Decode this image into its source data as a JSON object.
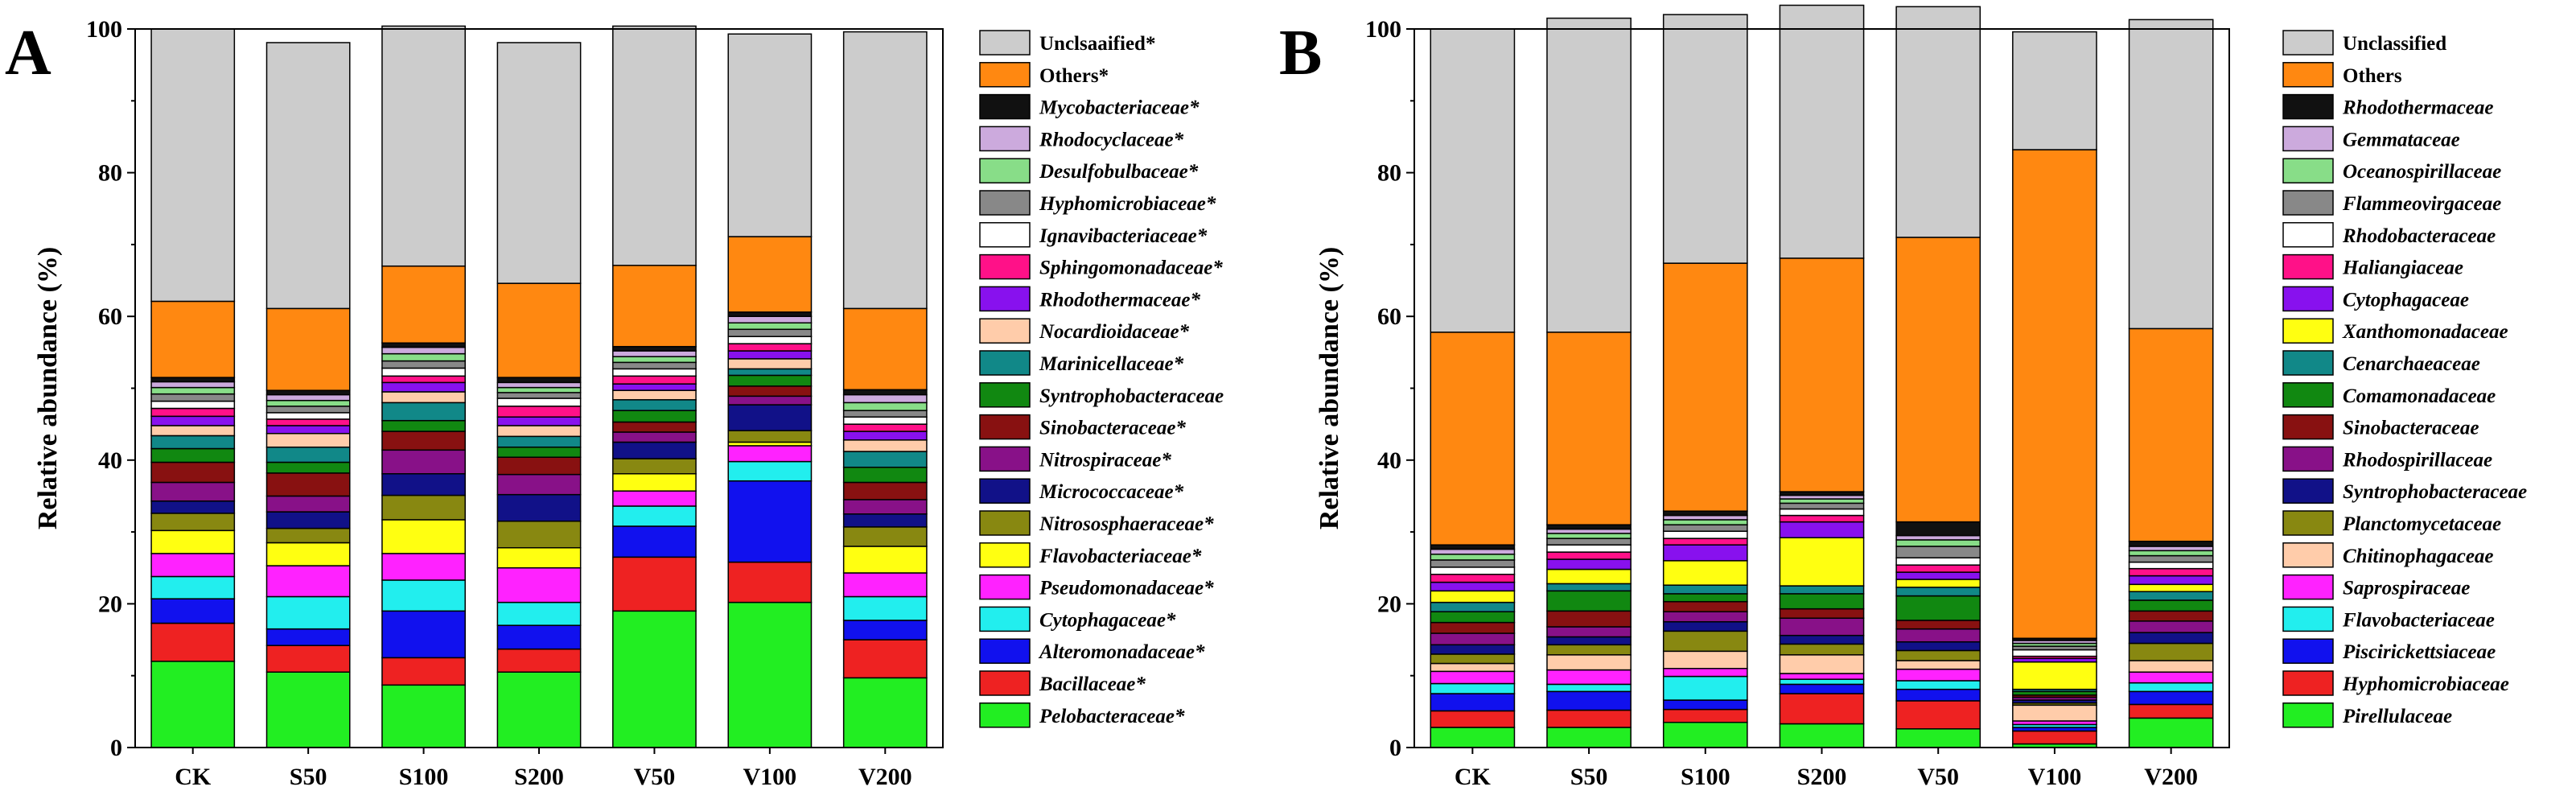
{
  "chart_data": [
    {
      "type": "bar",
      "stacked": true,
      "panel_letter": "A",
      "ylabel": "Relative abundance (%)",
      "xlabel": "",
      "ylim": [
        0,
        100
      ],
      "yticks": [
        0,
        20,
        40,
        60,
        80,
        100
      ],
      "categories": [
        "CK",
        "S50",
        "S100",
        "S200",
        "V50",
        "V100",
        "V200"
      ],
      "legend_position": "right",
      "series": [
        {
          "name": "Pelobacteraceae*",
          "italic": true,
          "color": "#22ee22",
          "values": [
            12,
            10.5,
            8.7,
            10.5,
            19,
            20.2,
            9.7
          ]
        },
        {
          "name": "Bacillaceae*",
          "italic": true,
          "color": "#ee2222",
          "values": [
            5.3,
            3.7,
            3.8,
            3.2,
            7.5,
            5.6,
            5.3
          ]
        },
        {
          "name": "Alteromonadaceae*",
          "italic": true,
          "color": "#1111ee",
          "values": [
            3.4,
            2.3,
            6.5,
            3.3,
            4.3,
            11.3,
            2.7
          ]
        },
        {
          "name": "Cytophagaceae*",
          "italic": true,
          "color": "#22eeee",
          "values": [
            3.1,
            4.5,
            4.3,
            3.2,
            2.8,
            2.7,
            3.3
          ]
        },
        {
          "name": "Pseudomonadaceae*",
          "italic": true,
          "color": "#ff22ff",
          "values": [
            3.2,
            4.3,
            3.7,
            4.8,
            2.1,
            2.2,
            3.3
          ]
        },
        {
          "name": "Flavobacteriaceae*",
          "italic": true,
          "color": "#ffff11",
          "values": [
            3.2,
            3.2,
            4.7,
            2.8,
            2.4,
            0.5,
            3.7
          ]
        },
        {
          "name": "Nitrososphaeraceae*",
          "italic": true,
          "color": "#888811",
          "values": [
            2.4,
            2.0,
            3.4,
            3.7,
            2.1,
            1.6,
            2.7
          ]
        },
        {
          "name": "Micrococcaceae*",
          "italic": true,
          "color": "#111188",
          "values": [
            1.7,
            2.3,
            3.0,
            3.7,
            2.3,
            3.6,
            1.8
          ]
        },
        {
          "name": "Nitrospiraceae*",
          "italic": true,
          "color": "#881188",
          "values": [
            2.6,
            2.2,
            3.3,
            2.8,
            1.4,
            1.2,
            2.0
          ]
        },
        {
          "name": "Sinobacteraceae*",
          "italic": true,
          "color": "#881111",
          "values": [
            2.8,
            3.2,
            2.6,
            2.4,
            1.4,
            1.4,
            2.4
          ]
        },
        {
          "name": "Syntrophobacteraceae",
          "italic": true,
          "color": "#118811",
          "values": [
            1.9,
            1.5,
            1.5,
            1.4,
            1.6,
            1.5,
            2.1
          ]
        },
        {
          "name": "Marinicellaceae*",
          "italic": true,
          "color": "#118888",
          "values": [
            1.8,
            2.1,
            2.5,
            1.5,
            1.5,
            0.9,
            2.2
          ]
        },
        {
          "name": "Nocardioidaceae*",
          "italic": true,
          "color": "#ffccaa",
          "values": [
            1.4,
            1.9,
            1.5,
            1.5,
            1.3,
            1.4,
            1.6
          ]
        },
        {
          "name": "Rhodothermaceae*",
          "italic": true,
          "color": "#8811ee",
          "values": [
            1.3,
            1.1,
            1.3,
            1.2,
            0.9,
            1.1,
            1.2
          ]
        },
        {
          "name": "Sphingomonadaceae*",
          "italic": true,
          "color": "#ff1188",
          "values": [
            1.1,
            0.9,
            0.9,
            1.5,
            1.1,
            1.0,
            1.0
          ]
        },
        {
          "name": "Ignavibacteriaceae*",
          "italic": true,
          "color": "#ffffff",
          "values": [
            1.0,
            0.9,
            1.1,
            1.1,
            1.0,
            1.0,
            1.0
          ]
        },
        {
          "name": "Hyphomicrobiaceae*",
          "italic": true,
          "color": "#888888",
          "values": [
            1.0,
            0.9,
            1.0,
            0.8,
            0.9,
            1.0,
            0.9
          ]
        },
        {
          "name": "Desulfobulbaceae*",
          "italic": true,
          "color": "#88dd88",
          "values": [
            0.9,
            0.8,
            1.0,
            0.7,
            0.8,
            0.9,
            1.1
          ]
        },
        {
          "name": "Rhodocyclaceae*",
          "italic": true,
          "color": "#ccaadd",
          "values": [
            0.8,
            0.8,
            0.9,
            0.7,
            0.8,
            0.9,
            1.1
          ]
        },
        {
          "name": "Mycobacteriaceae*",
          "italic": true,
          "color": "#111111",
          "values": [
            0.6,
            0.6,
            0.6,
            0.7,
            0.6,
            0.6,
            0.7
          ]
        },
        {
          "name": "Others*",
          "italic": false,
          "color": "#ff8811",
          "values": [
            10.6,
            11.4,
            10.7,
            13.1,
            11.3,
            10.5,
            11.3
          ]
        },
        {
          "name": "Unclsaaified*",
          "italic": false,
          "color": "#cccccc",
          "values": [
            37.9,
            37.0,
            33.4,
            33.5,
            33.3,
            28.2,
            38.5
          ]
        }
      ]
    },
    {
      "type": "bar",
      "stacked": true,
      "panel_letter": "B",
      "ylabel": "Relative abundance (%)",
      "xlabel": "",
      "ylim": [
        0,
        100
      ],
      "yticks": [
        0,
        20,
        40,
        60,
        80,
        100
      ],
      "categories": [
        "CK",
        "S50",
        "S100",
        "S200",
        "V50",
        "V100",
        "V200"
      ],
      "legend_position": "right",
      "series": [
        {
          "name": "Pirellulaceae",
          "italic": true,
          "color": "#22ee22",
          "values": [
            2.8,
            2.8,
            3.5,
            3.3,
            2.6,
            0.5,
            4.1
          ]
        },
        {
          "name": "Hyphomicrobiaceae",
          "italic": true,
          "color": "#ee2222",
          "values": [
            2.3,
            2.4,
            1.8,
            4.2,
            3.9,
            1.8,
            1.9
          ]
        },
        {
          "name": "Piscirickettsiaceae",
          "italic": true,
          "color": "#1111ee",
          "values": [
            2.4,
            2.6,
            1.3,
            1.3,
            1.6,
            0.5,
            1.8
          ]
        },
        {
          "name": "Flavobacteriaceae",
          "italic": true,
          "color": "#22eeee",
          "values": [
            1.4,
            1.0,
            3.3,
            0.7,
            1.2,
            0.4,
            1.2
          ]
        },
        {
          "name": "Saprospiraceae",
          "italic": true,
          "color": "#ff22ff",
          "values": [
            1.7,
            2.0,
            1.1,
            0.8,
            1.6,
            0.5,
            1.5
          ]
        },
        {
          "name": "Chitinophagaceae",
          "italic": true,
          "color": "#ffccaa",
          "values": [
            1.1,
            2.1,
            2.4,
            2.6,
            1.2,
            2.2,
            1.6
          ]
        },
        {
          "name": "Planctomycetaceae",
          "italic": true,
          "color": "#888811",
          "values": [
            1.3,
            1.4,
            2.8,
            1.5,
            1.4,
            0.3,
            2.4
          ]
        },
        {
          "name": "Syntrophobacteraceae",
          "italic": true,
          "color": "#111188",
          "values": [
            1.3,
            1.1,
            1.3,
            1.2,
            1.2,
            0.4,
            1.5
          ]
        },
        {
          "name": "Rhodospirillaceae",
          "italic": true,
          "color": "#881188",
          "values": [
            1.6,
            1.4,
            1.4,
            2.4,
            1.8,
            0.4,
            1.6
          ]
        },
        {
          "name": "Sinobacteraceae",
          "italic": true,
          "color": "#881111",
          "values": [
            1.5,
            2.2,
            1.4,
            1.3,
            1.2,
            0.3,
            1.4
          ]
        },
        {
          "name": "Comamonadaceae",
          "italic": true,
          "color": "#118811",
          "values": [
            1.5,
            2.8,
            1.1,
            2.1,
            3.4,
            0.5,
            1.5
          ]
        },
        {
          "name": "Cenarchaeaceae",
          "italic": true,
          "color": "#118888",
          "values": [
            1.3,
            1.0,
            1.2,
            1.1,
            1.2,
            0.3,
            1.2
          ]
        },
        {
          "name": "Xanthomonadaceae",
          "italic": true,
          "color": "#ffff11",
          "values": [
            1.6,
            2.0,
            3.4,
            6.7,
            1.1,
            3.8,
            1.0
          ]
        },
        {
          "name": "Cytophagaceae",
          "italic": true,
          "color": "#8811ee",
          "values": [
            1.2,
            1.4,
            2.2,
            2.2,
            1.0,
            0.5,
            1.2
          ]
        },
        {
          "name": "Haliangiaceae",
          "italic": true,
          "color": "#ff1188",
          "values": [
            1.1,
            1.0,
            0.9,
            0.9,
            1.0,
            0.3,
            1.0
          ]
        },
        {
          "name": "Rhodobacteraceae",
          "italic": true,
          "color": "#ffffff",
          "values": [
            1.0,
            1.0,
            1.0,
            0.9,
            1.0,
            0.9,
            0.9
          ]
        },
        {
          "name": "Flammeovirgaceae",
          "italic": true,
          "color": "#888888",
          "values": [
            1.0,
            0.9,
            0.9,
            0.8,
            1.6,
            0.5,
            0.9
          ]
        },
        {
          "name": "Oceanospirillaceae",
          "italic": true,
          "color": "#88dd88",
          "values": [
            0.8,
            0.7,
            0.7,
            0.6,
            0.9,
            0.4,
            0.7
          ]
        },
        {
          "name": "Gemmataceae",
          "italic": true,
          "color": "#ccaadd",
          "values": [
            0.7,
            0.6,
            0.6,
            0.5,
            0.6,
            0.4,
            0.6
          ]
        },
        {
          "name": "Rhodothermaceae",
          "italic": true,
          "color": "#111111",
          "values": [
            0.6,
            0.6,
            0.6,
            0.5,
            1.9,
            0.3,
            0.7
          ]
        },
        {
          "name": "Others",
          "italic": false,
          "color": "#ff8811",
          "values": [
            29.6,
            26.8,
            34.5,
            32.5,
            39.6,
            68.0,
            29.6
          ]
        },
        {
          "name": "Unclassified",
          "italic": false,
          "color": "#cccccc",
          "values": [
            42.2,
            43.7,
            34.6,
            35.2,
            32.1,
            16.4,
            43.0
          ]
        }
      ]
    }
  ]
}
